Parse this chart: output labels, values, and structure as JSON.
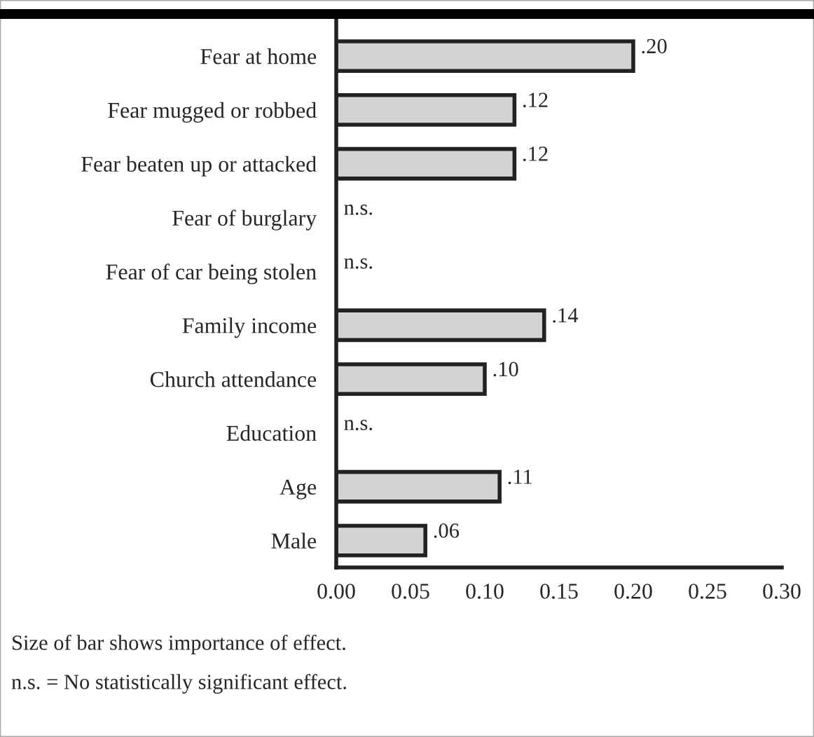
{
  "chart_data": {
    "type": "bar",
    "orientation": "horizontal",
    "categories": [
      "Fear at home",
      "Fear mugged or robbed",
      "Fear beaten up or attacked",
      "Fear of burglary",
      "Fear of car being stolen",
      "Family income",
      "Church attendance",
      "Education",
      "Age",
      "Male"
    ],
    "values": [
      0.2,
      0.12,
      0.12,
      null,
      null,
      0.14,
      0.1,
      null,
      0.11,
      0.06
    ],
    "value_labels": [
      ".20",
      ".12",
      ".12",
      "n.s.",
      "n.s.",
      ".14",
      ".10",
      "n.s.",
      ".11",
      ".06"
    ],
    "color": "#d3d3d3",
    "xlim": [
      0,
      0.3
    ],
    "xticks": [
      {
        "value": 0,
        "label": "0.00"
      },
      {
        "value": 0.05,
        "label": "0.05"
      },
      {
        "value": 0.1,
        "label": "0.10"
      },
      {
        "value": 0.15,
        "label": "0.15"
      },
      {
        "value": 0.2,
        "label": "0.20"
      },
      {
        "value": 0.25,
        "label": "0.25"
      },
      {
        "value": 0.3,
        "label": "0.30"
      }
    ],
    "grid": false,
    "legend": false,
    "annotations": [
      "Size of bar shows importance of effect.",
      "n.s. = No statistically significant effect."
    ]
  }
}
